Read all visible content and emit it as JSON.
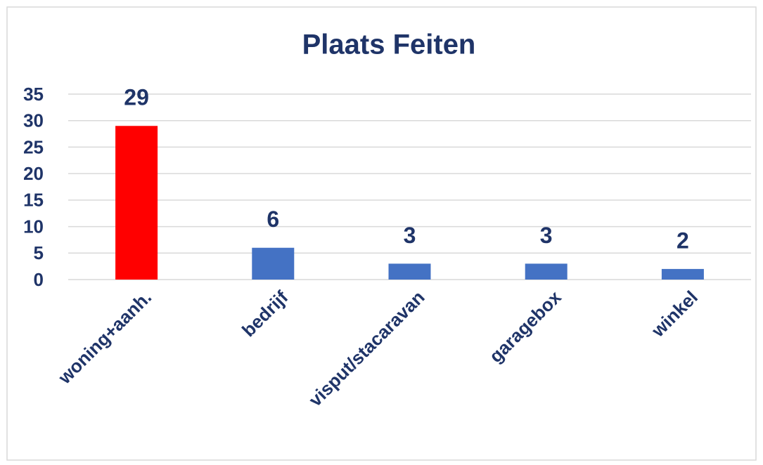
{
  "chart_data": {
    "type": "bar",
    "title": "Plaats Feiten",
    "categories": [
      "woning+aanh.",
      "bedrijf",
      "visput/stacaravan",
      "garagebox",
      "winkel"
    ],
    "values": [
      29,
      6,
      3,
      3,
      2
    ],
    "colors": [
      "#ff0000",
      "#4472c4",
      "#4472c4",
      "#4472c4",
      "#4472c4"
    ],
    "ylim": [
      0,
      35
    ],
    "yticks": [
      0,
      5,
      10,
      15,
      20,
      25,
      30,
      35
    ],
    "grid": true
  }
}
